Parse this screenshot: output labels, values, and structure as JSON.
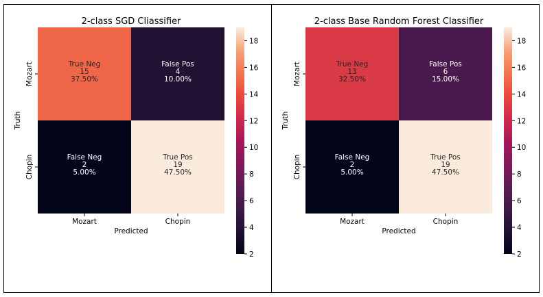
{
  "chart_data": [
    {
      "type": "heatmap",
      "title": "2-class SGD Cliassifier",
      "xlabel": "Predicted",
      "ylabel": "Truth",
      "x_categories": [
        "Mozart",
        "Chopin"
      ],
      "y_categories": [
        "Mozart",
        "Chopin"
      ],
      "cells": [
        [
          {
            "label": "True Neg",
            "count": 15,
            "percent": "37.50%"
          },
          {
            "label": "False Pos",
            "count": 4,
            "percent": "10.00%"
          }
        ],
        [
          {
            "label": "False Neg",
            "count": 2,
            "percent": "5.00%"
          },
          {
            "label": "True Pos",
            "count": 19,
            "percent": "47.50%"
          }
        ]
      ],
      "colorbar": {
        "vmin": 2,
        "vmax": 19,
        "ticks": [
          2,
          4,
          6,
          8,
          10,
          12,
          14,
          16,
          18
        ]
      }
    },
    {
      "type": "heatmap",
      "title": "2-class Base Random Forest Classifier",
      "xlabel": "Predicted",
      "ylabel": "Truth",
      "x_categories": [
        "Mozart",
        "Chopin"
      ],
      "y_categories": [
        "Mozart",
        "Chopin"
      ],
      "cells": [
        [
          {
            "label": "True Neg",
            "count": 13,
            "percent": "32.50%"
          },
          {
            "label": "False Pos",
            "count": 6,
            "percent": "15.00%"
          }
        ],
        [
          {
            "label": "False Neg",
            "count": 2,
            "percent": "5.00%"
          },
          {
            "label": "True Pos",
            "count": 19,
            "percent": "47.50%"
          }
        ]
      ],
      "colorbar": {
        "vmin": 2,
        "vmax": 19,
        "ticks": [
          2,
          4,
          6,
          8,
          10,
          12,
          14,
          16,
          18
        ]
      }
    }
  ]
}
